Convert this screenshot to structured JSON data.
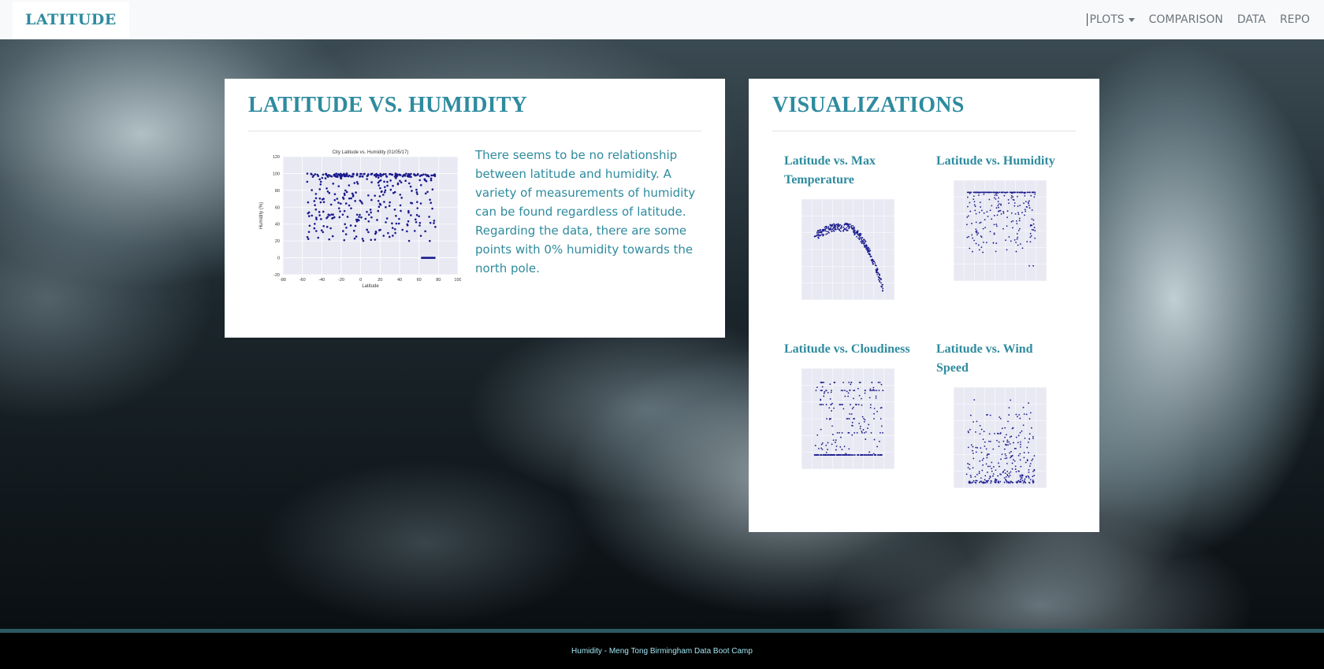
{
  "navbar": {
    "brand": "LATITUDE",
    "links": [
      {
        "label": "PLOTS",
        "dropdown": true
      },
      {
        "label": "COMPARISON"
      },
      {
        "label": "DATA"
      },
      {
        "label": "REPO"
      }
    ]
  },
  "main_card": {
    "title": "LATITUDE VS. HUMIDITY",
    "description": "There seems to be no relationship between latitude and humidity. A variety of measurements of humidity can be found regardless of latitude. Regarding the data, there are some points with 0% humidity towards the north pole."
  },
  "visualizations": {
    "title": "VISUALIZATIONS",
    "items": [
      {
        "title": "Latitude vs. Max Temperature",
        "key": "temp"
      },
      {
        "title": "Latitude vs. Humidity",
        "key": "humidity"
      },
      {
        "title": "Latitude vs. Cloudiness",
        "key": "cloud"
      },
      {
        "title": "Latitude vs. Wind Speed",
        "key": "wind"
      }
    ]
  },
  "chart_data": {
    "type": "scatter",
    "title": "City Latitude vs. Humidity (01/05/17)",
    "xlabel": "Latitude",
    "ylabel": "Humidity (%)",
    "xlim": [
      -80,
      100
    ],
    "ylim": [
      -20,
      120
    ],
    "xticks": [
      -80,
      -60,
      -40,
      -20,
      0,
      20,
      40,
      60,
      80,
      100
    ],
    "yticks": [
      -20,
      0,
      20,
      40,
      60,
      80,
      100,
      120
    ],
    "grid": true,
    "marker_color": "#1a1a8c"
  },
  "footer": {
    "text": "Humidity - Meng Tong Birmingham Data Boot Camp"
  }
}
